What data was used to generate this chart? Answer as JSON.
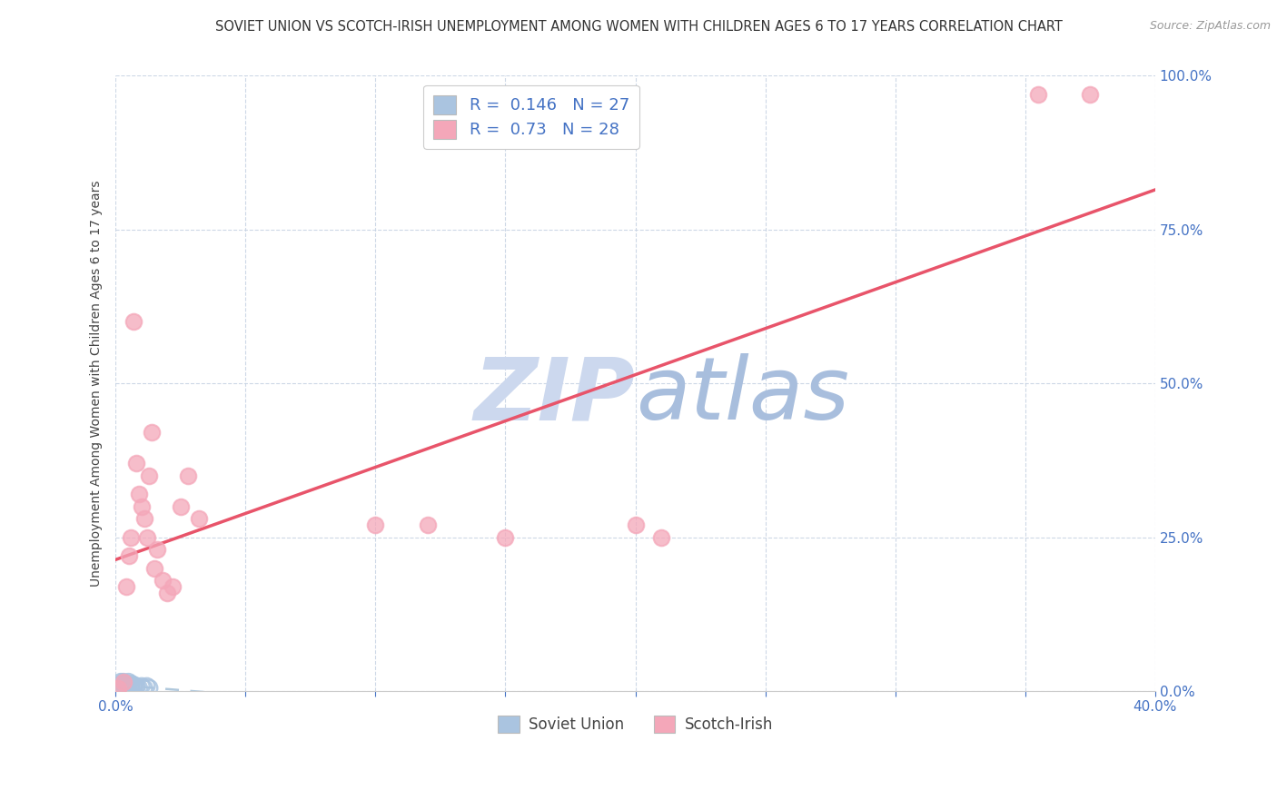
{
  "title": "SOVIET UNION VS SCOTCH-IRISH UNEMPLOYMENT AMONG WOMEN WITH CHILDREN AGES 6 TO 17 YEARS CORRELATION CHART",
  "source": "Source: ZipAtlas.com",
  "ylabel": "Unemployment Among Women with Children Ages 6 to 17 years",
  "xlim": [
    0.0,
    0.4
  ],
  "ylim": [
    0.0,
    1.0
  ],
  "xticks": [
    0.0,
    0.05,
    0.1,
    0.15,
    0.2,
    0.25,
    0.3,
    0.35,
    0.4
  ],
  "yticks": [
    0.0,
    0.25,
    0.5,
    0.75,
    1.0
  ],
  "soviet_x": [
    0.001,
    0.001,
    0.002,
    0.002,
    0.002,
    0.003,
    0.003,
    0.003,
    0.003,
    0.004,
    0.004,
    0.004,
    0.005,
    0.005,
    0.005,
    0.006,
    0.006,
    0.006,
    0.007,
    0.007,
    0.008,
    0.008,
    0.009,
    0.01,
    0.011,
    0.012,
    0.013
  ],
  "soviet_y": [
    0.005,
    0.01,
    0.005,
    0.01,
    0.015,
    0.005,
    0.008,
    0.012,
    0.015,
    0.005,
    0.008,
    0.012,
    0.005,
    0.01,
    0.015,
    0.005,
    0.008,
    0.012,
    0.005,
    0.01,
    0.005,
    0.008,
    0.005,
    0.008,
    0.005,
    0.008,
    0.005
  ],
  "scotch_x": [
    0.001,
    0.003,
    0.004,
    0.005,
    0.006,
    0.007,
    0.008,
    0.009,
    0.01,
    0.011,
    0.012,
    0.013,
    0.014,
    0.015,
    0.016,
    0.018,
    0.02,
    0.022,
    0.025,
    0.028,
    0.032,
    0.1,
    0.12,
    0.15,
    0.2,
    0.21,
    0.355,
    0.375
  ],
  "scotch_y": [
    0.005,
    0.015,
    0.17,
    0.22,
    0.25,
    0.6,
    0.37,
    0.32,
    0.3,
    0.28,
    0.25,
    0.35,
    0.42,
    0.2,
    0.23,
    0.18,
    0.16,
    0.17,
    0.3,
    0.35,
    0.28,
    0.27,
    0.27,
    0.25,
    0.27,
    0.25,
    0.97,
    0.97
  ],
  "soviet_color": "#aac4e0",
  "scotch_color": "#f4a7b9",
  "soviet_line_color": "#b0c8dc",
  "scotch_line_color": "#e8546a",
  "soviet_R": 0.146,
  "soviet_N": 27,
  "scotch_R": 0.73,
  "scotch_N": 28,
  "tick_color": "#4472c4",
  "label_color": "#4472c4",
  "watermark_zip_color": "#ccd8ee",
  "watermark_atlas_color": "#a8bedd",
  "background_color": "#ffffff",
  "grid_color": "#c8d4e4",
  "title_fontsize": 10.5,
  "ylabel_fontsize": 10,
  "tick_fontsize": 11,
  "legend_fontsize": 13
}
